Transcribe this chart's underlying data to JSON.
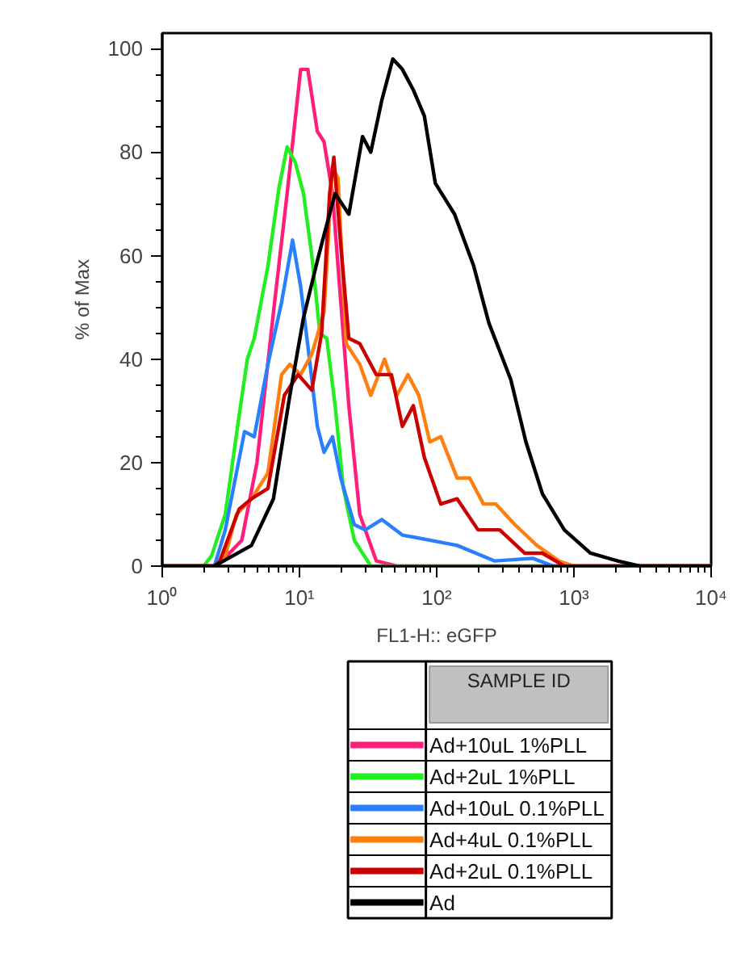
{
  "chart_data": {
    "type": "line",
    "xlabel": "FL1-H:: eGFP",
    "ylabel": "% of Max",
    "legend_title": "SAMPLE ID",
    "log": "x",
    "xlim": [
      1,
      10000
    ],
    "ylim": [
      0,
      103
    ],
    "xticks": [
      {
        "value": 1,
        "label": "10⁰"
      },
      {
        "value": 10,
        "label": "10¹"
      },
      {
        "value": 100,
        "label": "10²"
      },
      {
        "value": 1000,
        "label": "10³"
      },
      {
        "value": 10000,
        "label": "10⁴"
      }
    ],
    "yticks": [
      0,
      20,
      40,
      60,
      80,
      100
    ],
    "grid": false,
    "legend": "bottom",
    "marker": "none",
    "line_style": "solid",
    "series": [
      {
        "name": "Ad+10uL 1%PLL",
        "color": "#ff1f7a",
        "x": [
          1,
          2.51,
          3.8,
          4.9,
          6.46,
          8.13,
          10.2,
          11.5,
          13.5,
          15.1,
          17.4,
          20,
          22.9,
          27.5,
          36.3,
          51.3,
          10000
        ],
        "values": [
          0,
          0,
          5,
          20,
          49,
          72,
          96,
          96,
          84,
          82,
          72,
          51,
          31,
          10,
          1,
          0,
          0
        ]
      },
      {
        "name": "Ad+2uL 1%PLL",
        "color": "#22ee22",
        "x": [
          1,
          2.0,
          2.29,
          2.88,
          3.63,
          4.17,
          4.68,
          5.89,
          7.08,
          8.13,
          9.33,
          10.7,
          12.3,
          14.1,
          15.8,
          18.2,
          20.9,
          25.1,
          33.1,
          10000
        ],
        "values": [
          0,
          0,
          2,
          10,
          29,
          40,
          44,
          58,
          73,
          81,
          78,
          72,
          60,
          45,
          44,
          31,
          15,
          5,
          0,
          0
        ]
      },
      {
        "name": "Ad+10uL 0.1%PLL",
        "color": "#2a7fff",
        "x": [
          1,
          2.4,
          2.88,
          3.47,
          3.98,
          4.68,
          5.89,
          7.41,
          8.91,
          10.2,
          11.7,
          13.5,
          15.1,
          17.4,
          20,
          25.1,
          30.2,
          39.8,
          56.2,
          141,
          263,
          501,
          708,
          10000
        ],
        "values": [
          0,
          0,
          7,
          18,
          26,
          25,
          39,
          51,
          63,
          54,
          41,
          27,
          22,
          25,
          17,
          8,
          7,
          9,
          6,
          4,
          1,
          1.5,
          0,
          0
        ]
      },
      {
        "name": "Ad+4uL 0.1%PLL",
        "color": "#ff7f0e",
        "x": [
          1,
          2.51,
          2.88,
          3.47,
          4.47,
          5.89,
          7.41,
          8.51,
          10.2,
          12.3,
          15.1,
          17.4,
          19.1,
          21.9,
          27.5,
          33.1,
          41.7,
          51.3,
          61.7,
          74.1,
          89.1,
          107,
          141,
          174,
          219,
          269,
          372,
          537,
          776,
          1000,
          10000
        ],
        "values": [
          0,
          0,
          2,
          10,
          13,
          18,
          37,
          39,
          37,
          41,
          49,
          77,
          75,
          43,
          39,
          33,
          40,
          33,
          37,
          33,
          24,
          25,
          17,
          17,
          12,
          12,
          8,
          4,
          1,
          0,
          0
        ]
      },
      {
        "name": "Ad+2uL 0.1%PLL",
        "color": "#cc0000",
        "x": [
          1,
          2.4,
          2.63,
          3.63,
          4.47,
          5.89,
          7.76,
          9.77,
          12.3,
          14.5,
          16.6,
          17.8,
          20,
          22.9,
          27.5,
          36.3,
          46.8,
          56.2,
          67.6,
          81.3,
          107,
          141,
          200,
          288,
          437,
          589,
          851,
          10000
        ],
        "values": [
          0,
          0,
          1,
          11,
          13,
          15,
          33,
          37,
          34,
          45,
          72,
          79,
          62,
          44,
          43,
          37,
          37,
          27,
          31,
          21,
          12,
          13,
          7,
          7,
          2.5,
          2.5,
          0,
          0
        ]
      },
      {
        "name": "Ad",
        "color": "#000000",
        "x": [
          1,
          2.4,
          4.47,
          6.46,
          8.51,
          10.7,
          13.5,
          15.1,
          18.2,
          22.9,
          28.8,
          33.1,
          39.8,
          47.9,
          56.2,
          67.6,
          81.3,
          97.7,
          135,
          186,
          240,
          347,
          447,
          589,
          851,
          1318,
          2089,
          3020,
          10000
        ],
        "values": [
          0,
          0,
          4,
          13,
          33,
          48,
          59,
          64,
          72,
          68,
          83,
          80,
          90,
          98,
          96,
          92,
          87,
          74,
          68,
          58,
          47,
          36,
          24,
          14,
          7,
          2.5,
          1,
          0,
          0
        ]
      }
    ]
  }
}
